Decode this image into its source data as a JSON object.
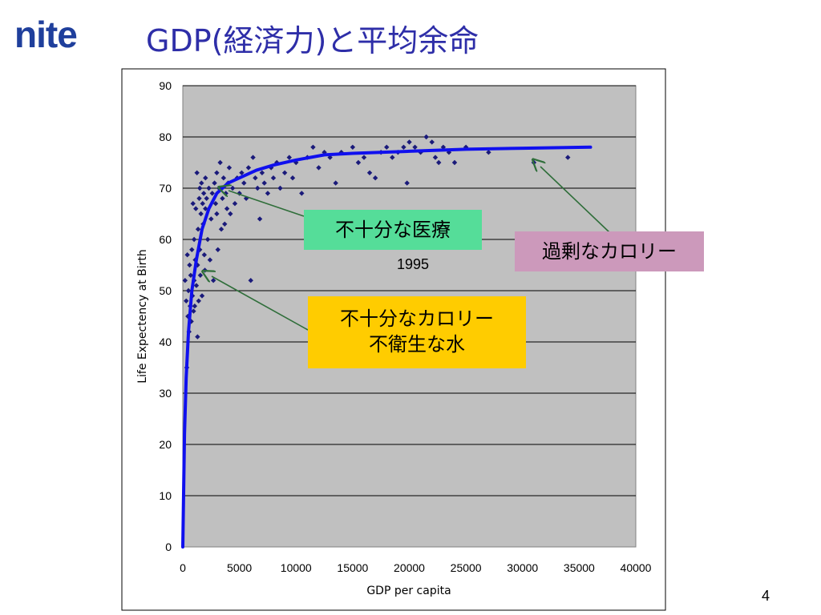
{
  "logo_text": "nite",
  "title": "GDP(経済力)と平均余命",
  "page_number": "4",
  "year_label": "1995",
  "callouts": {
    "insufficient_care": "不十分な医療",
    "excess_calories": "過剰なカロリー",
    "poor_line1": "不十分なカロリー",
    "poor_line2": "不衛生な水"
  },
  "colors": {
    "title": "#2e2ea8",
    "logo": "#1f3f9c",
    "plot_background": "#c0c0c0",
    "points": "#1a1a7a",
    "trend": "#1010ee",
    "arrow": "#2f6e3a",
    "callout_green": "#55dd99",
    "callout_pink": "#cc99bb",
    "callout_yellow": "#ffcc00"
  },
  "chart_data": {
    "type": "scatter",
    "title": "",
    "xlabel": "GDP per capita",
    "ylabel": "Life Expectency at Birth",
    "xlim": [
      0,
      40000
    ],
    "ylim": [
      0,
      90
    ],
    "x_ticks": [
      0,
      5000,
      10000,
      15000,
      20000,
      25000,
      30000,
      35000,
      40000
    ],
    "y_ticks": [
      0,
      10,
      20,
      30,
      40,
      50,
      60,
      70,
      80,
      90
    ],
    "grid": "horizontal",
    "legend": "none",
    "series": [
      {
        "type": "scatter",
        "points": [
          [
            200,
            52
          ],
          [
            300,
            48
          ],
          [
            350,
            35
          ],
          [
            400,
            57
          ],
          [
            450,
            45
          ],
          [
            500,
            50
          ],
          [
            550,
            42
          ],
          [
            600,
            55
          ],
          [
            650,
            47
          ],
          [
            700,
            53
          ],
          [
            750,
            44
          ],
          [
            800,
            58
          ],
          [
            850,
            49
          ],
          [
            900,
            67
          ],
          [
            950,
            46
          ],
          [
            1000,
            52
          ],
          [
            1000,
            60
          ],
          [
            1050,
            47
          ],
          [
            1100,
            56
          ],
          [
            1150,
            66
          ],
          [
            1200,
            51
          ],
          [
            1250,
            73
          ],
          [
            1300,
            55
          ],
          [
            1300,
            41
          ],
          [
            1350,
            62
          ],
          [
            1400,
            48
          ],
          [
            1450,
            68
          ],
          [
            1500,
            70
          ],
          [
            1500,
            58
          ],
          [
            1550,
            53
          ],
          [
            1600,
            65
          ],
          [
            1650,
            71
          ],
          [
            1700,
            49
          ],
          [
            1750,
            67
          ],
          [
            1800,
            63
          ],
          [
            1850,
            69
          ],
          [
            1900,
            57
          ],
          [
            1950,
            54
          ],
          [
            2000,
            72
          ],
          [
            2000,
            66
          ],
          [
            2100,
            68
          ],
          [
            2200,
            60
          ],
          [
            2300,
            70
          ],
          [
            2400,
            56
          ],
          [
            2500,
            64
          ],
          [
            2600,
            69
          ],
          [
            2700,
            52
          ],
          [
            2800,
            71
          ],
          [
            2900,
            67
          ],
          [
            3000,
            73
          ],
          [
            3000,
            65
          ],
          [
            3100,
            58
          ],
          [
            3200,
            70
          ],
          [
            3300,
            75
          ],
          [
            3400,
            62
          ],
          [
            3500,
            68
          ],
          [
            3600,
            72
          ],
          [
            3700,
            63
          ],
          [
            3800,
            69
          ],
          [
            3900,
            66
          ],
          [
            4000,
            71
          ],
          [
            4100,
            74
          ],
          [
            4200,
            65
          ],
          [
            4400,
            70
          ],
          [
            4600,
            67
          ],
          [
            4800,
            72
          ],
          [
            5000,
            69
          ],
          [
            5200,
            73
          ],
          [
            5400,
            71
          ],
          [
            5600,
            68
          ],
          [
            5800,
            74
          ],
          [
            6000,
            52
          ],
          [
            6200,
            76
          ],
          [
            6400,
            72
          ],
          [
            6600,
            70
          ],
          [
            6800,
            64
          ],
          [
            7000,
            73
          ],
          [
            7200,
            71
          ],
          [
            7500,
            69
          ],
          [
            7800,
            74
          ],
          [
            8000,
            72
          ],
          [
            8300,
            75
          ],
          [
            8600,
            70
          ],
          [
            9000,
            73
          ],
          [
            9400,
            76
          ],
          [
            9700,
            72
          ],
          [
            10000,
            75
          ],
          [
            10500,
            69
          ],
          [
            11000,
            76
          ],
          [
            11500,
            78
          ],
          [
            12000,
            74
          ],
          [
            12500,
            77
          ],
          [
            13000,
            76
          ],
          [
            13500,
            71
          ],
          [
            14000,
            77
          ],
          [
            15000,
            78
          ],
          [
            15500,
            75
          ],
          [
            16000,
            76
          ],
          [
            16500,
            73
          ],
          [
            17000,
            72
          ],
          [
            17500,
            77
          ],
          [
            18000,
            78
          ],
          [
            18500,
            76
          ],
          [
            19000,
            77
          ],
          [
            19500,
            78
          ],
          [
            19800,
            71
          ],
          [
            20000,
            79
          ],
          [
            20500,
            78
          ],
          [
            21000,
            77
          ],
          [
            21500,
            80
          ],
          [
            22000,
            79
          ],
          [
            22300,
            76
          ],
          [
            22600,
            75
          ],
          [
            23000,
            78
          ],
          [
            23500,
            77
          ],
          [
            24000,
            75
          ],
          [
            25000,
            78
          ],
          [
            27000,
            77
          ],
          [
            31000,
            75
          ],
          [
            34000,
            76
          ]
        ]
      },
      {
        "type": "line",
        "points": [
          [
            0,
            0
          ],
          [
            150,
            22
          ],
          [
            300,
            33
          ],
          [
            500,
            42
          ],
          [
            800,
            50
          ],
          [
            1200,
            56
          ],
          [
            1700,
            62
          ],
          [
            2300,
            66
          ],
          [
            3000,
            69
          ],
          [
            4000,
            71
          ],
          [
            5000,
            72
          ],
          [
            6500,
            73.5
          ],
          [
            8000,
            74.5
          ],
          [
            10000,
            75.5
          ],
          [
            12500,
            76.5
          ],
          [
            15000,
            76.8
          ],
          [
            20000,
            77.2
          ],
          [
            25000,
            77.6
          ],
          [
            30000,
            77.8
          ],
          [
            36000,
            78
          ]
        ]
      }
    ]
  }
}
